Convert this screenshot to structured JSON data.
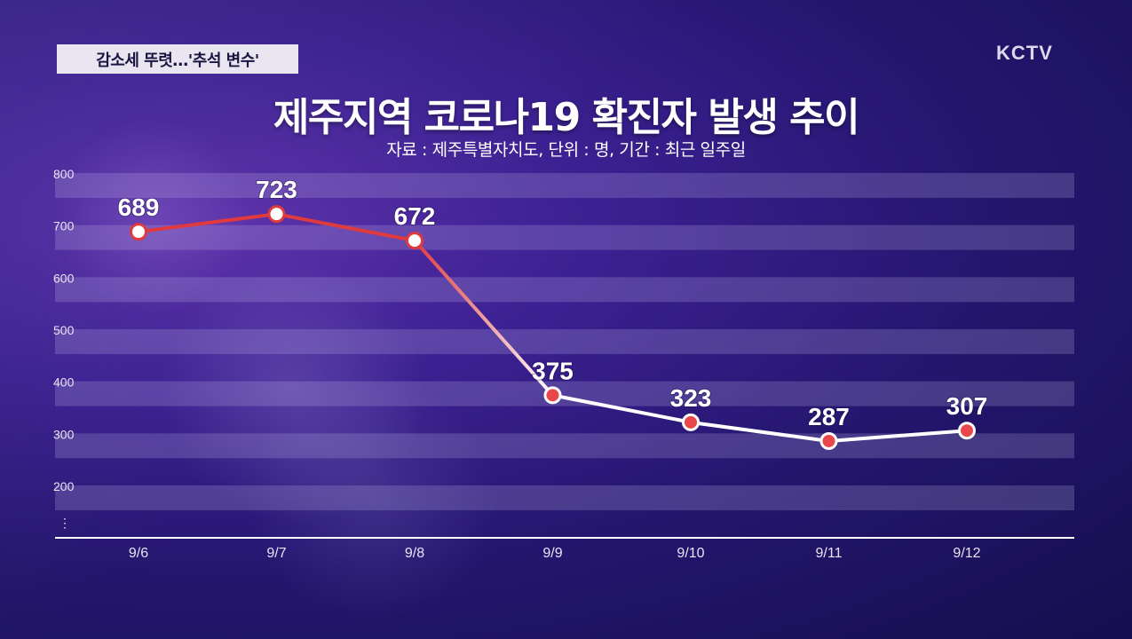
{
  "header": {
    "tag": "감소세 뚜렷…'추석 변수'",
    "logo": "KCTV"
  },
  "chart_data": {
    "type": "line",
    "title": "제주지역 코로나19 확진자 발생 추이",
    "subtitle": "자료 : 제주특별자치도, 단위 : 명, 기간 : 최근 일주일",
    "categories": [
      "9/6",
      "9/7",
      "9/8",
      "9/9",
      "9/10",
      "9/11",
      "9/12"
    ],
    "values": [
      689,
      723,
      672,
      375,
      323,
      287,
      307
    ],
    "yticks": [
      800,
      700,
      600,
      500,
      400,
      300,
      200
    ],
    "ylim": [
      150,
      800
    ],
    "axis_break_symbol": "⋮",
    "colors": {
      "high": "#e03a3e",
      "low": "#ffffff",
      "marker_fill": "#e8484c",
      "band": "rgba(200,190,235,0.22)"
    }
  }
}
